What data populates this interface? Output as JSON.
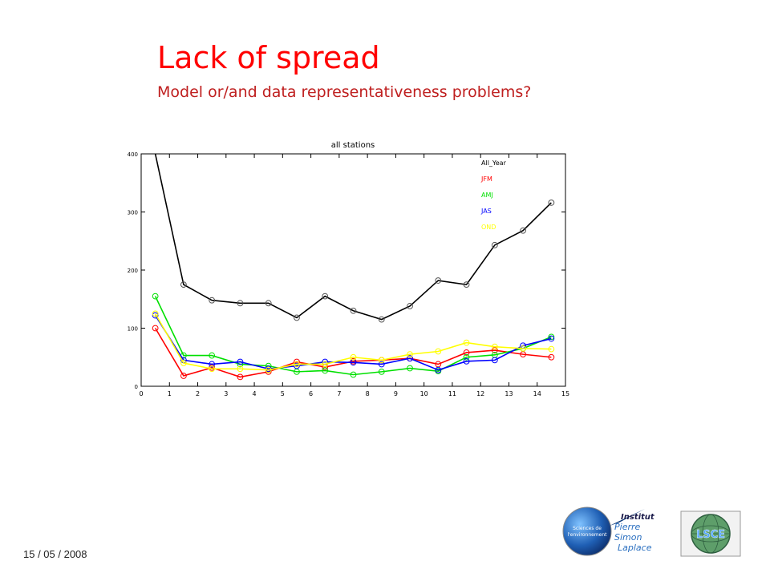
{
  "slide": {
    "title": "Lack of spread",
    "subtitle": "Model or/and data representativeness problems?",
    "date": "15 / 05 / 2008"
  },
  "logos": {
    "sciences": {
      "lines": [
        "Sciences de",
        "l'environnement"
      ]
    },
    "ipsl": {
      "lines": [
        "Institut",
        "Pierre",
        "Simon",
        "Laplace"
      ]
    },
    "lsce": {
      "text": "LSCE"
    }
  },
  "chart_data": {
    "type": "line",
    "title": "all stations",
    "xlabel": "",
    "ylabel": "",
    "xlim": [
      0,
      15
    ],
    "ylim": [
      0,
      400
    ],
    "xticks": [
      "0",
      "1",
      "2",
      "3",
      "4",
      "5",
      "6",
      "7",
      "8",
      "9",
      "10",
      "11",
      "12",
      "13",
      "14",
      "15"
    ],
    "yticks": [
      "0",
      "100",
      "200",
      "300",
      "400"
    ],
    "legend_position": "top-right",
    "grid": false,
    "x": [
      0.5,
      1.5,
      2.5,
      3.5,
      4.5,
      5.5,
      6.5,
      7.5,
      8.5,
      9.5,
      10.5,
      11.5,
      12.5,
      13.5,
      14.5
    ],
    "series": [
      {
        "name": "All_Year",
        "color": "#000000",
        "values": [
          null,
          175,
          148,
          143,
          143,
          118,
          155,
          130,
          115,
          138,
          182,
          175,
          243,
          268,
          316
        ]
      },
      {
        "name": "JFM",
        "color": "#ff0000",
        "values": [
          100,
          18,
          32,
          16,
          25,
          42,
          33,
          43,
          45,
          48,
          38,
          58,
          62,
          55,
          50
        ]
      },
      {
        "name": "AMJ",
        "color": "#00e000",
        "values": [
          155,
          53,
          53,
          38,
          35,
          25,
          27,
          20,
          25,
          31,
          26,
          50,
          54,
          65,
          85
        ]
      },
      {
        "name": "JAS",
        "color": "#0000ff",
        "values": [
          122,
          45,
          38,
          42,
          30,
          35,
          42,
          41,
          38,
          48,
          28,
          43,
          45,
          70,
          82
        ]
      },
      {
        "name": "OND",
        "color": "#ffff00",
        "values": [
          125,
          40,
          30,
          30,
          28,
          38,
          38,
          50,
          45,
          55,
          60,
          75,
          68,
          65,
          64
        ]
      }
    ],
    "annotations": [
      {
        "series": "All_Year",
        "note": "line exits top of plot at x=0.5 (value above 400)"
      }
    ]
  }
}
